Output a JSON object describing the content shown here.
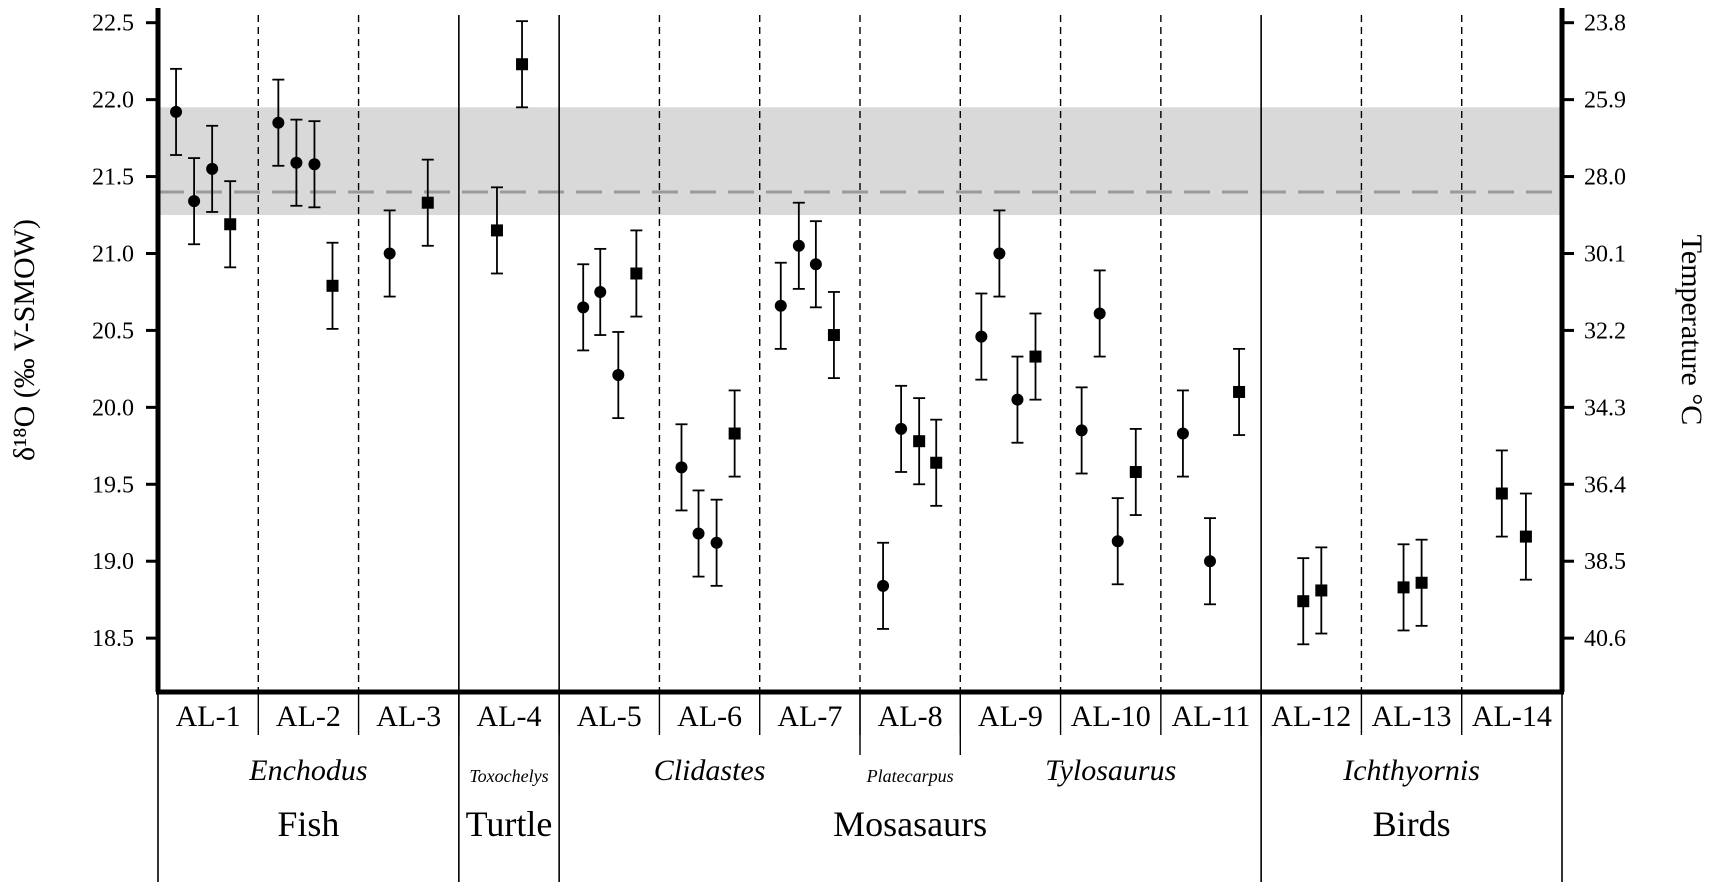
{
  "chart_data": {
    "type": "scatter",
    "ylabel": "δ¹⁸O (‰ V-SMOW)",
    "y2label": "Temperature °C",
    "ylim": [
      18.15,
      22.55
    ],
    "yticks": [
      22.5,
      22.0,
      21.5,
      21.0,
      20.5,
      20.0,
      19.5,
      19.0,
      18.5
    ],
    "yticks_labels": [
      "22.5",
      "22.0",
      "21.5",
      "21.0",
      "20.5",
      "20.0",
      "19.5",
      "19.0",
      "18.5"
    ],
    "y2ticks": [
      {
        "at": 22.5,
        "label": "23.8"
      },
      {
        "at": 22.0,
        "label": "25.9"
      },
      {
        "at": 21.5,
        "label": "28.0"
      },
      {
        "at": 21.0,
        "label": "30.1"
      },
      {
        "at": 20.5,
        "label": "32.2"
      },
      {
        "at": 20.0,
        "label": "34.3"
      },
      {
        "at": 19.5,
        "label": "36.4"
      },
      {
        "at": 19.0,
        "label": "38.5"
      },
      {
        "at": 18.5,
        "label": "40.6"
      }
    ],
    "reference_line": 21.4,
    "reference_band": [
      21.25,
      21.95
    ],
    "grid": false,
    "categories": [
      "AL-1",
      "AL-2",
      "AL-3",
      "AL-4",
      "AL-5",
      "AL-6",
      "AL-7",
      "AL-8",
      "AL-9",
      "AL-10",
      "AL-11",
      "AL-12",
      "AL-13",
      "AL-14"
    ],
    "solid_dividers_after": [
      3,
      4,
      11
    ],
    "points": [
      {
        "cat": 0,
        "off": 0.18,
        "y": 21.92,
        "err": 0.28,
        "marker": "circle"
      },
      {
        "cat": 0,
        "off": 0.36,
        "y": 21.34,
        "err": 0.28,
        "marker": "circle"
      },
      {
        "cat": 0,
        "off": 0.54,
        "y": 21.55,
        "err": 0.28,
        "marker": "circle"
      },
      {
        "cat": 0,
        "off": 0.72,
        "y": 21.19,
        "err": 0.28,
        "marker": "square"
      },
      {
        "cat": 1,
        "off": 0.2,
        "y": 21.85,
        "err": 0.28,
        "marker": "circle"
      },
      {
        "cat": 1,
        "off": 0.38,
        "y": 21.59,
        "err": 0.28,
        "marker": "circle"
      },
      {
        "cat": 1,
        "off": 0.56,
        "y": 21.58,
        "err": 0.28,
        "marker": "circle"
      },
      {
        "cat": 1,
        "off": 0.74,
        "y": 20.79,
        "err": 0.28,
        "marker": "square"
      },
      {
        "cat": 2,
        "off": 0.31,
        "y": 21.0,
        "err": 0.28,
        "marker": "circle"
      },
      {
        "cat": 2,
        "off": 0.69,
        "y": 21.33,
        "err": 0.28,
        "marker": "square"
      },
      {
        "cat": 3,
        "off": 0.38,
        "y": 21.15,
        "err": 0.28,
        "marker": "square"
      },
      {
        "cat": 3,
        "off": 0.63,
        "y": 22.23,
        "err": 0.28,
        "marker": "square"
      },
      {
        "cat": 4,
        "off": 0.24,
        "y": 20.65,
        "err": 0.28,
        "marker": "circle"
      },
      {
        "cat": 4,
        "off": 0.41,
        "y": 20.75,
        "err": 0.28,
        "marker": "circle"
      },
      {
        "cat": 4,
        "off": 0.59,
        "y": 20.21,
        "err": 0.28,
        "marker": "circle"
      },
      {
        "cat": 4,
        "off": 0.77,
        "y": 20.87,
        "err": 0.28,
        "marker": "square"
      },
      {
        "cat": 5,
        "off": 0.22,
        "y": 19.61,
        "err": 0.28,
        "marker": "circle"
      },
      {
        "cat": 5,
        "off": 0.39,
        "y": 19.18,
        "err": 0.28,
        "marker": "circle"
      },
      {
        "cat": 5,
        "off": 0.57,
        "y": 19.12,
        "err": 0.28,
        "marker": "circle"
      },
      {
        "cat": 5,
        "off": 0.75,
        "y": 19.83,
        "err": 0.28,
        "marker": "square"
      },
      {
        "cat": 6,
        "off": 0.21,
        "y": 20.66,
        "err": 0.28,
        "marker": "circle"
      },
      {
        "cat": 6,
        "off": 0.39,
        "y": 21.05,
        "err": 0.28,
        "marker": "circle"
      },
      {
        "cat": 6,
        "off": 0.56,
        "y": 20.93,
        "err": 0.28,
        "marker": "circle"
      },
      {
        "cat": 6,
        "off": 0.74,
        "y": 20.47,
        "err": 0.28,
        "marker": "square"
      },
      {
        "cat": 7,
        "off": 0.23,
        "y": 18.84,
        "err": 0.28,
        "marker": "circle"
      },
      {
        "cat": 7,
        "off": 0.41,
        "y": 19.86,
        "err": 0.28,
        "marker": "circle"
      },
      {
        "cat": 7,
        "off": 0.59,
        "y": 19.78,
        "err": 0.28,
        "marker": "square"
      },
      {
        "cat": 7,
        "off": 0.76,
        "y": 19.64,
        "err": 0.28,
        "marker": "square"
      },
      {
        "cat": 8,
        "off": 0.21,
        "y": 20.46,
        "err": 0.28,
        "marker": "circle"
      },
      {
        "cat": 8,
        "off": 0.39,
        "y": 21.0,
        "err": 0.28,
        "marker": "circle"
      },
      {
        "cat": 8,
        "off": 0.57,
        "y": 20.05,
        "err": 0.28,
        "marker": "circle"
      },
      {
        "cat": 8,
        "off": 0.75,
        "y": 20.33,
        "err": 0.28,
        "marker": "square"
      },
      {
        "cat": 9,
        "off": 0.21,
        "y": 19.85,
        "err": 0.28,
        "marker": "circle"
      },
      {
        "cat": 9,
        "off": 0.39,
        "y": 20.61,
        "err": 0.28,
        "marker": "circle"
      },
      {
        "cat": 9,
        "off": 0.57,
        "y": 19.13,
        "err": 0.28,
        "marker": "circle"
      },
      {
        "cat": 9,
        "off": 0.75,
        "y": 19.58,
        "err": 0.28,
        "marker": "square"
      },
      {
        "cat": 10,
        "off": 0.22,
        "y": 19.83,
        "err": 0.28,
        "marker": "circle"
      },
      {
        "cat": 10,
        "off": 0.49,
        "y": 19.0,
        "err": 0.28,
        "marker": "circle"
      },
      {
        "cat": 10,
        "off": 0.78,
        "y": 20.1,
        "err": 0.28,
        "marker": "square"
      },
      {
        "cat": 11,
        "off": 0.42,
        "y": 18.74,
        "err": 0.28,
        "marker": "square"
      },
      {
        "cat": 11,
        "off": 0.6,
        "y": 18.81,
        "err": 0.28,
        "marker": "square"
      },
      {
        "cat": 12,
        "off": 0.42,
        "y": 18.83,
        "err": 0.28,
        "marker": "square"
      },
      {
        "cat": 12,
        "off": 0.6,
        "y": 18.86,
        "err": 0.28,
        "marker": "square"
      },
      {
        "cat": 13,
        "off": 0.4,
        "y": 19.44,
        "err": 0.28,
        "marker": "square"
      },
      {
        "cat": 13,
        "off": 0.64,
        "y": 19.16,
        "err": 0.28,
        "marker": "square"
      }
    ],
    "genus_labels": [
      {
        "text": "Enchodus",
        "from": 0,
        "to": 3,
        "small": false
      },
      {
        "text": "Toxochelys",
        "from": 3,
        "to": 4,
        "small": true
      },
      {
        "text": "Clidastes",
        "from": 4,
        "to": 7,
        "small": false
      },
      {
        "text": "Platecarpus",
        "from": 7,
        "to": 8,
        "small": true
      },
      {
        "text": "Tylosaurus",
        "from": 8,
        "to": 11,
        "small": false
      },
      {
        "text": "Ichthyornis",
        "from": 11,
        "to": 14,
        "small": false
      }
    ],
    "group_labels": [
      {
        "text": "Fish",
        "from": 0,
        "to": 3
      },
      {
        "text": "Turtle",
        "from": 3,
        "to": 4
      },
      {
        "text": "Mosasaurs",
        "from": 4,
        "to": 11
      },
      {
        "text": "Birds",
        "from": 11,
        "to": 14
      }
    ],
    "colors": {
      "marker": "#000000",
      "band": "#d9d9d9",
      "reference_line": "#9a9a9a"
    }
  }
}
